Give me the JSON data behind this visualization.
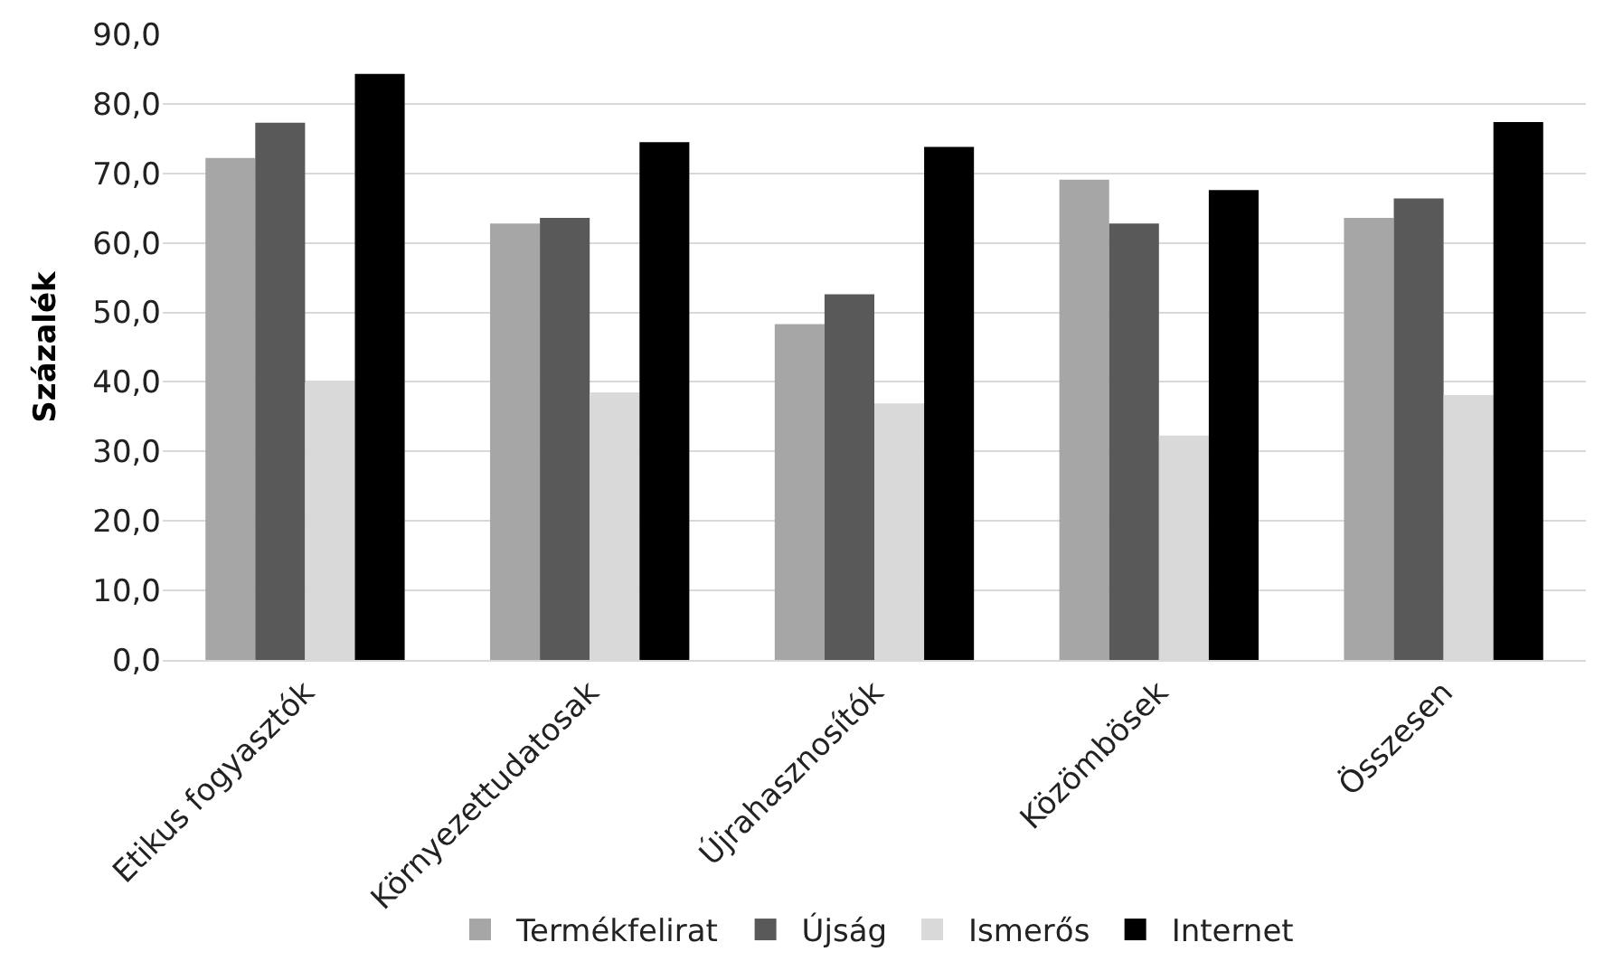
{
  "chart_data": {
    "type": "bar",
    "ylabel": "Százalék",
    "categories": [
      "Etikus fogyasztók",
      "Környezettudatosak",
      "Újrahasznosítók",
      "Közömbösek",
      "Összesen"
    ],
    "series": [
      {
        "name": "Termékfelirat",
        "color": "#a6a6a6",
        "values": [
          72.2,
          62.8,
          48.3,
          69.1,
          63.6
        ]
      },
      {
        "name": "Újság",
        "color": "#595959",
        "values": [
          77.3,
          63.6,
          52.6,
          62.8,
          66.4
        ]
      },
      {
        "name": "Ismerős",
        "color": "#d9d9d9",
        "values": [
          40.0,
          38.5,
          36.9,
          32.3,
          38.1
        ]
      },
      {
        "name": "Internet",
        "color": "#000000",
        "values": [
          84.3,
          74.5,
          73.8,
          67.6,
          77.4
        ]
      }
    ],
    "ylim": [
      0,
      90
    ],
    "yticks": [
      {
        "value": 0,
        "label": "0,0"
      },
      {
        "value": 10,
        "label": "10,0"
      },
      {
        "value": 20,
        "label": "20,0"
      },
      {
        "value": 30,
        "label": "30,0"
      },
      {
        "value": 40,
        "label": "40,0"
      },
      {
        "value": 50,
        "label": "50,0"
      },
      {
        "value": 60,
        "label": "60,0"
      },
      {
        "value": 70,
        "label": "70,0"
      },
      {
        "value": 80,
        "label": "80,0"
      },
      {
        "value": 90,
        "label": "90,0"
      }
    ],
    "grid": "y",
    "legend": "bottom"
  }
}
